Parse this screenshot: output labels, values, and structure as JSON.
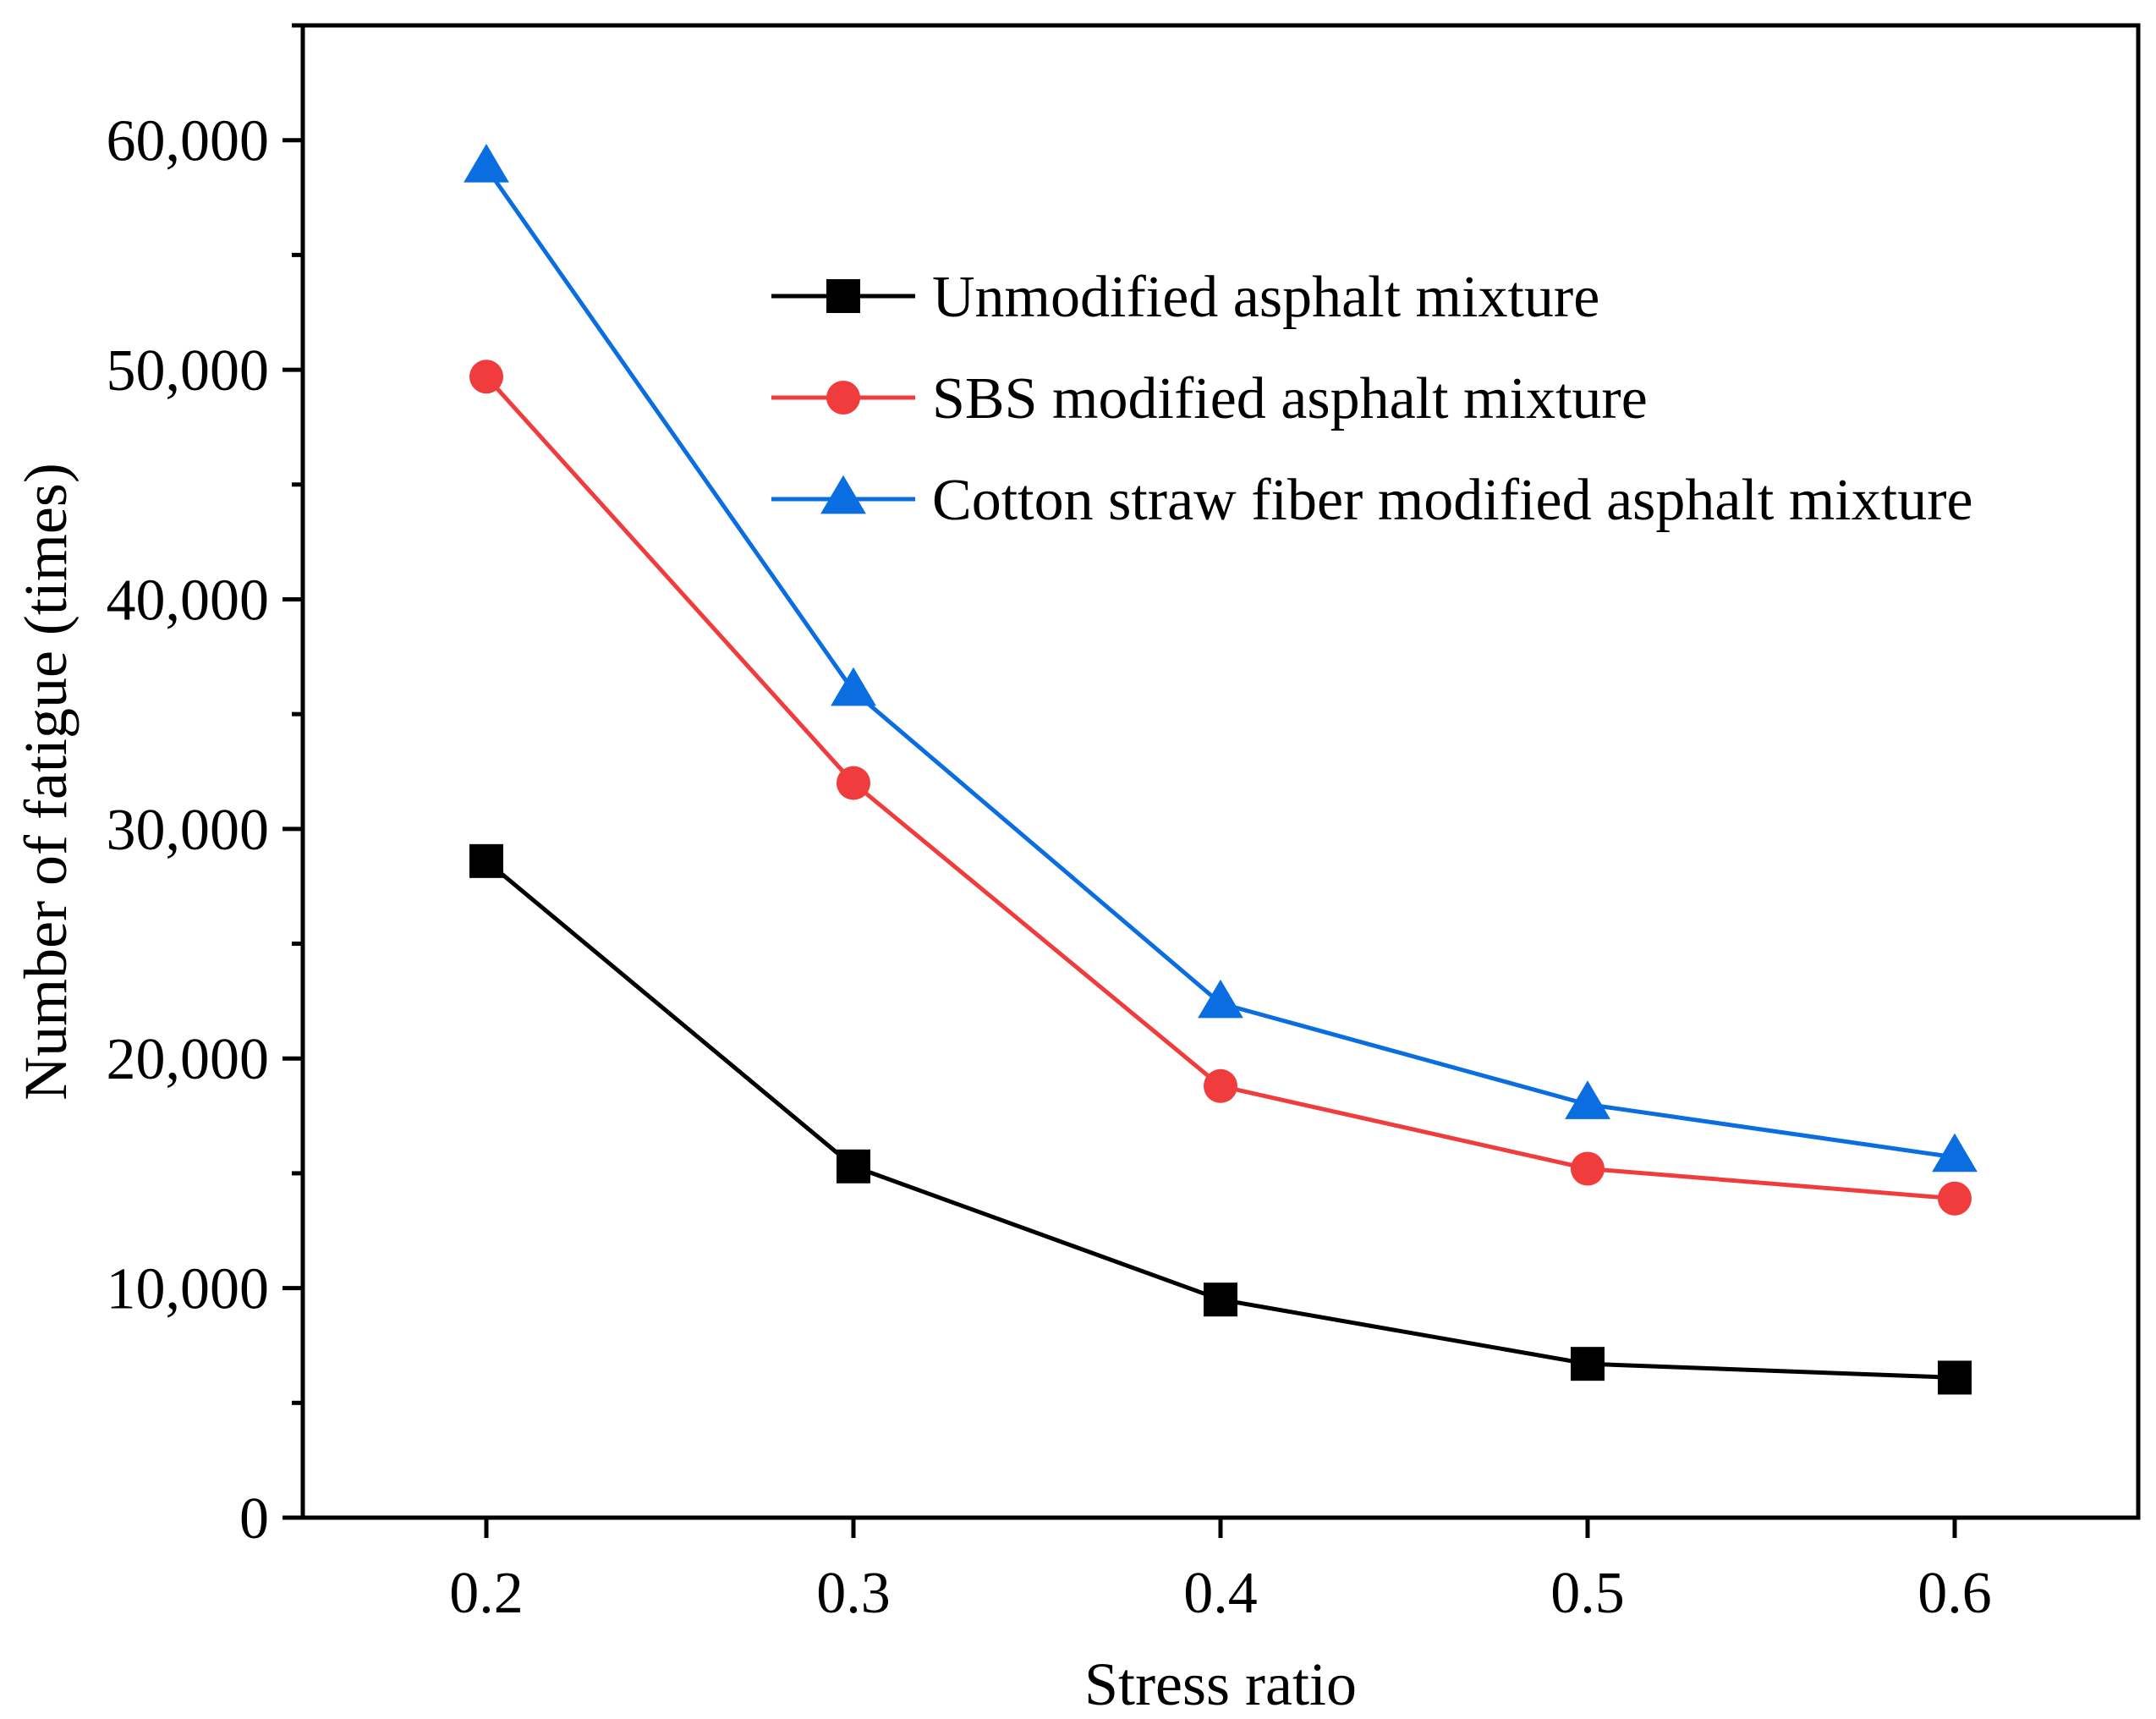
{
  "chart_data": {
    "type": "line",
    "title": "",
    "xlabel": "Stress ratio",
    "ylabel": "Number of fatigue (times)",
    "x": [
      0.2,
      0.3,
      0.4,
      0.5,
      0.6
    ],
    "x_tick_labels": [
      "0.2",
      "0.3",
      "0.4",
      "0.5",
      "0.6"
    ],
    "xlim": [
      0.15,
      0.65
    ],
    "ylim": [
      0,
      65000
    ],
    "y_ticks": [
      0,
      10000,
      20000,
      30000,
      40000,
      50000,
      60000
    ],
    "y_tick_labels": [
      "0",
      "10,000",
      "20,000",
      "30,000",
      "40,000",
      "50,000",
      "60,000"
    ],
    "grid": false,
    "legend_position": "top-right",
    "series": [
      {
        "name": "Unmodified asphalt mixture",
        "color": "#000000",
        "marker": "square",
        "values": [
          28600,
          15300,
          9500,
          6700,
          6100
        ]
      },
      {
        "name": "SBS modified asphalt mixture",
        "color": "#f03c3c",
        "marker": "circle",
        "values": [
          49700,
          32000,
          18800,
          15200,
          13900
        ]
      },
      {
        "name": "Cotton straw fiber modified asphalt mixture",
        "color": "#0a6de0",
        "marker": "triangle",
        "values": [
          58800,
          36000,
          22400,
          18000,
          15700
        ]
      }
    ]
  }
}
